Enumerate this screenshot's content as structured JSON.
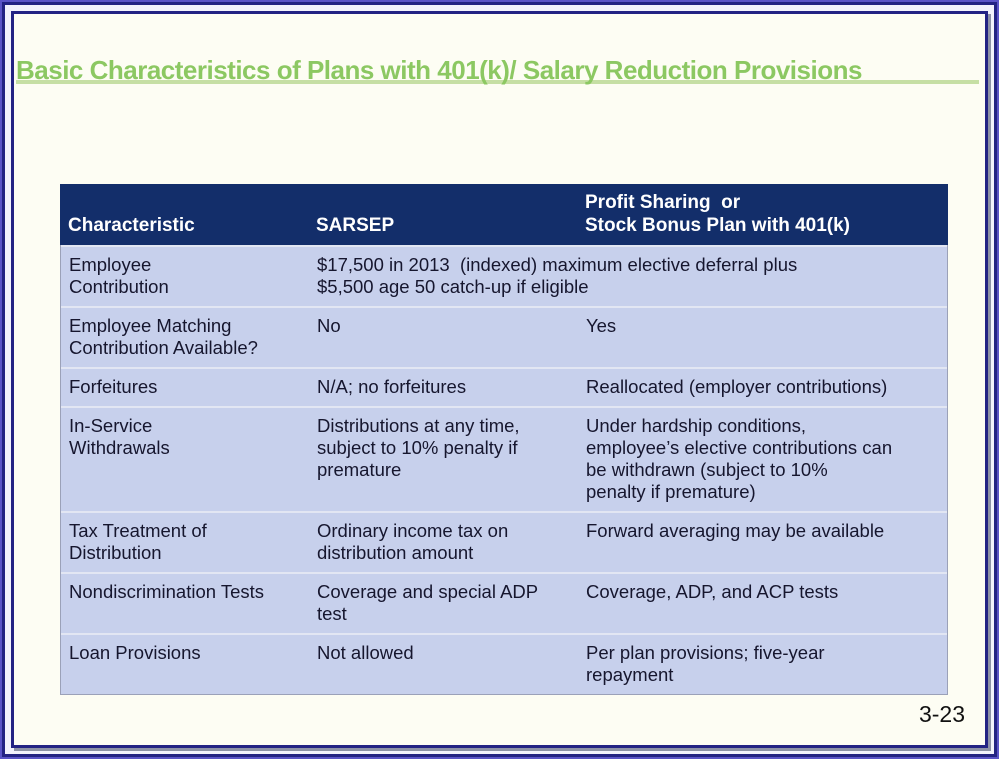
{
  "slide": {
    "title": "Basic Characteristics of Plans with 401(k)/ Salary Reduction Provisions",
    "page_number": "3-23"
  },
  "colors": {
    "title_green": "#8cc862",
    "title_underline_green": "#c6dfa4",
    "header_navy": "#132e6a",
    "row_periwinkle": "#c7d0ec",
    "frame_navy": "#232383",
    "frame_purple": "#5a54c6",
    "slide_background": "#fdfdf3"
  },
  "table": {
    "headers": {
      "characteristic": "Characteristic",
      "sarsep": "SARSEP",
      "profit_sharing": "Profit Sharing  or\nStock Bonus Plan with 401(k)"
    },
    "rows": [
      {
        "characteristic": "Employee\nContribution",
        "merged": "$17,500 in 2013  (indexed) maximum elective deferral plus\n$5,500 age 50 catch-up if eligible"
      },
      {
        "characteristic": "Employee Matching\nContribution Available?",
        "sarsep": "No",
        "profit_sharing": "Yes"
      },
      {
        "characteristic": "Forfeitures",
        "sarsep": "N/A; no forfeitures",
        "profit_sharing": "Reallocated (employer contributions)"
      },
      {
        "characteristic": "In-Service\nWithdrawals",
        "sarsep": "Distributions at any time,\nsubject to 10% penalty if\npremature",
        "profit_sharing": "Under hardship conditions,\nemployee’s elective contributions can\nbe withdrawn (subject to 10%\npenalty if premature)"
      },
      {
        "characteristic": "Tax Treatment of\nDistribution",
        "sarsep": "Ordinary income tax on\ndistribution amount",
        "profit_sharing": "Forward averaging may be available"
      },
      {
        "characteristic": "Nondiscrimination Tests",
        "sarsep": "Coverage and special ADP\ntest",
        "profit_sharing": "Coverage, ADP, and ACP tests"
      },
      {
        "characteristic": "Loan Provisions",
        "sarsep": "Not allowed",
        "profit_sharing": "Per plan provisions; five-year\nrepayment"
      }
    ]
  }
}
